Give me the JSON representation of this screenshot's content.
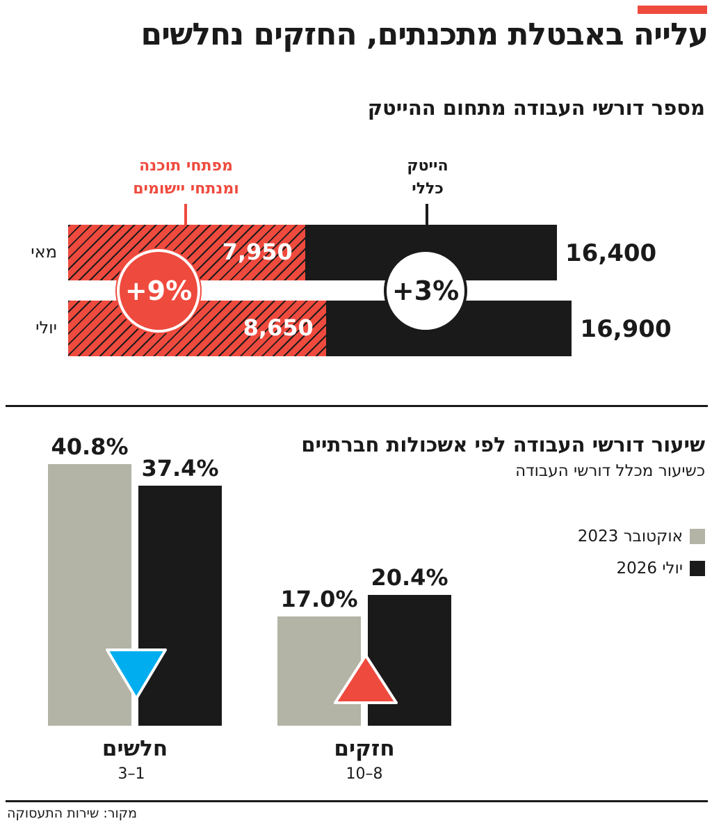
{
  "title": "עלייה באבטלת מתכנתים, החזקים נחלשים",
  "colors": {
    "accent": "#ef4a3e",
    "black": "#1a1a1a",
    "gray": "#b3b3a6",
    "blue": "#00aeef"
  },
  "section1": {
    "subtitle": "מספר דורשי העבודה מתחום ההייטק",
    "col_hightech": {
      "line1": "הייטק",
      "line2": "כללי"
    },
    "col_devs": {
      "line1": "מפתחי תוכנה",
      "line2": "ומנתחי יישומים"
    },
    "changes": {
      "devs": "+9%",
      "hightech": "+3%"
    }
  },
  "section2": {
    "subtitle": "שיעור דורשי העבודה לפי אשכולות חברתיים",
    "subtitle2": "כשיעור מכלל דורשי העבודה",
    "legend": [
      {
        "label": "אוקטובר 2023",
        "color": "#b3b3a6"
      },
      {
        "label": "יולי 2026",
        "color": "#1a1a1a"
      }
    ],
    "group_ranges": [
      "3–1",
      "10–8"
    ]
  },
  "source": "מקור: שירות התעסוקה",
  "chart_data": [
    {
      "type": "bar",
      "orientation": "horizontal",
      "categories": [
        "מאי",
        "יולי"
      ],
      "series": [
        {
          "name": "מפתחי תוכנה ומנתחי יישומים",
          "values": [
            7950,
            8650
          ],
          "labels": [
            "7,950",
            "8,650"
          ]
        },
        {
          "name": "הייטק כללי",
          "values": [
            16400,
            16900
          ],
          "labels": [
            "16,400",
            "16,900"
          ]
        }
      ]
    },
    {
      "type": "bar",
      "categories": [
        "חלשים",
        "חזקים"
      ],
      "series": [
        {
          "name": "אוקטובר 2023",
          "values": [
            40.8,
            17.0
          ],
          "labels": [
            "40.8%",
            "17.0%"
          ]
        },
        {
          "name": "יולי 2026",
          "values": [
            37.4,
            20.4
          ],
          "labels": [
            "37.4%",
            "20.4%"
          ]
        }
      ],
      "trend": [
        "down",
        "up"
      ]
    }
  ]
}
